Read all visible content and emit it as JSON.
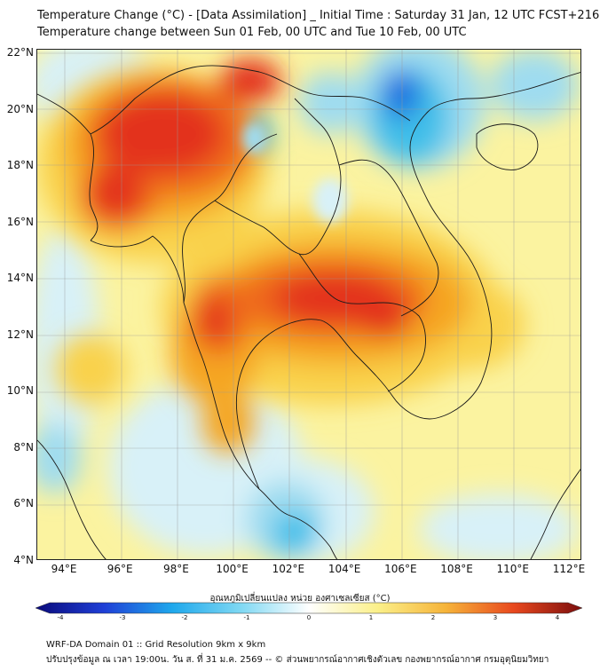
{
  "header": {
    "title_line1": "Temperature Change (°C) - [Data Assimilation] _ Initial Time : Saturday 31 Jan, 12 UTC FCST+216",
    "title_line2": "Temperature change between Sun 01 Feb, 00 UTC and Tue 10 Feb, 00 UTC"
  },
  "map": {
    "lat_labels": [
      "22°N",
      "20°N",
      "18°N",
      "16°N",
      "14°N",
      "12°N",
      "10°N",
      "8°N",
      "6°N",
      "4°N"
    ],
    "lon_labels": [
      "94°E",
      "96°E",
      "98°E",
      "100°E",
      "102°E",
      "104°E",
      "106°E",
      "108°E",
      "110°E",
      "112°E"
    ],
    "background_color": "#fbf3a0",
    "warm_colors": [
      "#f9d24c",
      "#f5a623",
      "#ef6a1e",
      "#e3321a"
    ],
    "cool_colors": [
      "#d8f1f8",
      "#9fdcf0",
      "#3fbfe9",
      "#1f6fe0"
    ]
  },
  "colorbar": {
    "title": "อุณหภูมิเปลี่ยนแปลง หน่วย องศาเซลเซียส (°C)",
    "ticks": [
      "-4",
      "-3",
      "-2",
      "-1",
      "0",
      "1",
      "2",
      "3",
      "4"
    ],
    "stops": [
      "#0a0a7a",
      "#1f3fd6",
      "#1fa8ec",
      "#7fd8f3",
      "#ffffff",
      "#fbf08a",
      "#f6b43a",
      "#e8481e",
      "#7a0d0d"
    ]
  },
  "footer": {
    "line1": "WRF-DA Domain 01 :: Grid Resolution 9km x 9km",
    "line2": "ปรับปรุงข้อมูล ณ เวลา 19:00น. วัน ส. ที่ 31 ม.ค. 2569 -- © ส่วนพยากรณ์อากาศเชิงตัวเลข กองพยากรณ์อากาศ กรมอุตุนิยมวิทยา"
  }
}
